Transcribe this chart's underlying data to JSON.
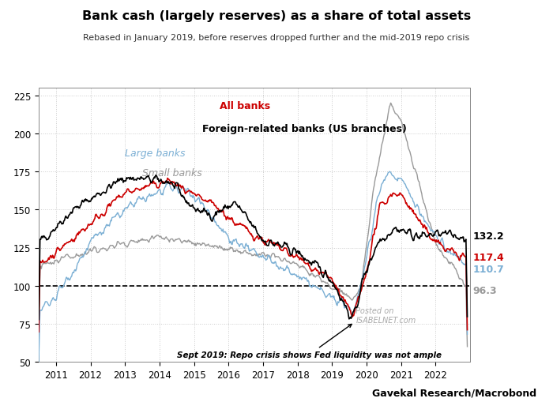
{
  "title": "Bank cash (largely reserves) as a share of total assets",
  "subtitle": "Rebased in January 2019, before reserves dropped further and the mid-2019 repo crisis",
  "source": "Gavekal Research/Macrobond",
  "annotation": "Sept 2019: Repo crisis shows Fed liquidity was not ample",
  "ylim": [
    50,
    230
  ],
  "yticks": [
    50,
    75,
    100,
    125,
    150,
    175,
    200,
    225
  ],
  "xlim_start": 2010.5,
  "xlim_end": 2023.0,
  "xticks": [
    2011,
    2012,
    2013,
    2014,
    2015,
    2016,
    2017,
    2018,
    2019,
    2020,
    2021,
    2022
  ],
  "end_labels": {
    "black": "132.2",
    "red": "117.4",
    "blue": "110.7",
    "gray": "96.3"
  },
  "legend_labels": {
    "red": "All banks",
    "black": "Foreign-related banks (US branches)",
    "blue": "Large banks",
    "gray": "Small banks"
  },
  "colors": {
    "black": "#000000",
    "red": "#cc0000",
    "blue": "#7bafd4",
    "gray": "#999999"
  },
  "dashed_line_y": 100,
  "background_color": "#ffffff",
  "grid_color": "#cccccc"
}
